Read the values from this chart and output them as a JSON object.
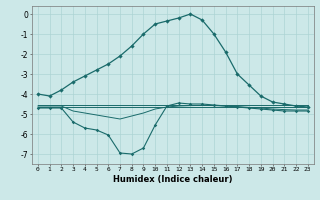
{
  "xlabel": "Humidex (Indice chaleur)",
  "x": [
    0,
    1,
    2,
    3,
    4,
    5,
    6,
    7,
    8,
    9,
    10,
    11,
    12,
    13,
    14,
    15,
    16,
    17,
    18,
    19,
    20,
    21,
    22,
    23
  ],
  "line_main": [
    -4.0,
    -4.1,
    -3.8,
    -3.4,
    -3.1,
    -2.8,
    -2.5,
    -2.1,
    -1.6,
    -1.0,
    -0.5,
    -0.35,
    -0.2,
    0.0,
    -0.3,
    -1.0,
    -1.9,
    -3.0,
    -3.55,
    -4.1,
    -4.4,
    -4.5,
    -4.6,
    -4.65
  ],
  "line_flat1": [
    -4.55,
    -4.55,
    -4.55,
    -4.55,
    -4.55,
    -4.55,
    -4.55,
    -4.55,
    -4.55,
    -4.55,
    -4.55,
    -4.55,
    -4.55,
    -4.55,
    -4.55,
    -4.55,
    -4.55,
    -4.55,
    -4.55,
    -4.55,
    -4.55,
    -4.55,
    -4.55,
    -4.55
  ],
  "line_flat2": [
    -4.65,
    -4.65,
    -4.65,
    -4.65,
    -4.65,
    -4.65,
    -4.65,
    -4.65,
    -4.65,
    -4.65,
    -4.65,
    -4.65,
    -4.65,
    -4.65,
    -4.65,
    -4.65,
    -4.65,
    -4.65,
    -4.65,
    -4.65,
    -4.65,
    -4.65,
    -4.65,
    -4.65
  ],
  "line_dip": [
    -4.7,
    -4.7,
    -4.7,
    -5.4,
    -5.7,
    -5.8,
    -6.05,
    -6.95,
    -7.0,
    -6.7,
    -5.55,
    -4.6,
    -4.45,
    -4.5,
    -4.5,
    -4.55,
    -4.6,
    -4.65,
    -4.7,
    -4.75,
    -4.8,
    -4.85,
    -4.85,
    -4.85
  ],
  "line_mid": [
    -4.6,
    -4.6,
    -4.6,
    -4.85,
    -4.95,
    -5.05,
    -5.15,
    -5.25,
    -5.1,
    -4.95,
    -4.75,
    -4.65,
    -4.6,
    -4.58,
    -4.57,
    -4.58,
    -4.6,
    -4.63,
    -4.67,
    -4.7,
    -4.75,
    -4.78,
    -4.8,
    -4.8
  ],
  "line_color": "#1a6b6b",
  "bg_color": "#cce8e8",
  "grid_color": "#add4d4",
  "ylim": [
    -7.5,
    0.4
  ],
  "yticks": [
    0,
    -1,
    -2,
    -3,
    -4,
    -5,
    -6,
    -7
  ]
}
